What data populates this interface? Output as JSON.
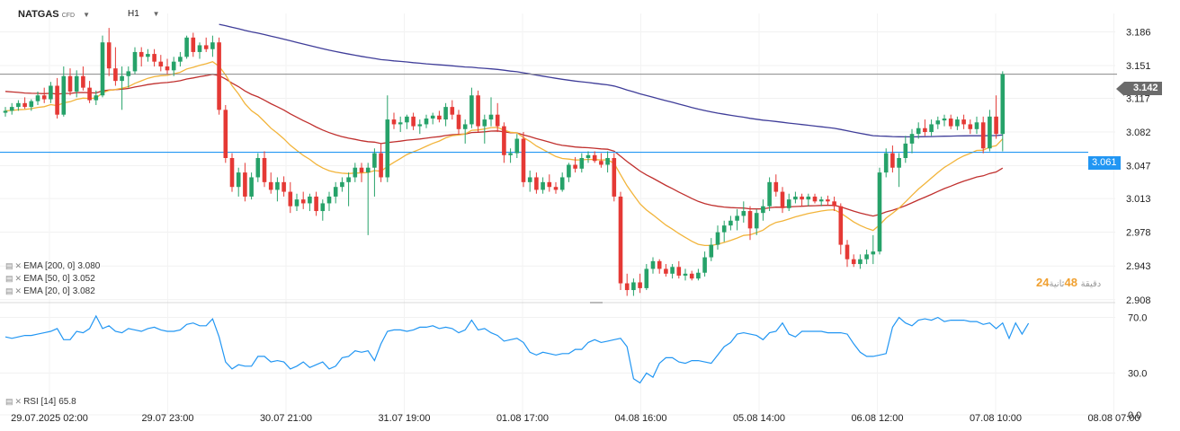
{
  "header": {
    "symbol": "NATGAS",
    "symbol_suffix": "CFD",
    "timeframe": "H1"
  },
  "indicators": [
    {
      "label": "EMA [200, 0]",
      "value": "3.080",
      "color": "#3f3d99"
    },
    {
      "label": "EMA [50, 0]",
      "value": "3.052",
      "color": "#c0302e"
    },
    {
      "label": "EMA [20, 0]",
      "value": "3.082",
      "color": "#f2b43a"
    }
  ],
  "rsi": {
    "label": "RSI [14]",
    "value": "65.8",
    "color": "#2196f3"
  },
  "price_tags": {
    "last": "3.142",
    "level": "3.061"
  },
  "timer": {
    "minutes": "24",
    "seconds": "48",
    "min_suffix": "دقيقة",
    "sec_suffix": "ثانية"
  },
  "colors": {
    "up": "#26a269",
    "down": "#e53935",
    "level_line": "#2196f3"
  },
  "chart_data": [
    {
      "type": "candlestick",
      "x_tick_labels": [
        "29.07.2025 02:00",
        "29.07 23:00",
        "30.07 21:00",
        "31.07 19:00",
        "01.08 17:00",
        "04.08 16:00",
        "05.08 14:00",
        "06.08 12:00",
        "07.08 10:00",
        "08.08 07:00"
      ],
      "y_tick_labels": [
        "3.186",
        "3.151",
        "3.117",
        "3.082",
        "3.047",
        "3.013",
        "2.978",
        "2.943",
        "2.908"
      ],
      "ylim": [
        2.905,
        3.205
      ],
      "horizontal_lines": [
        3.142,
        3.061
      ],
      "candles": [
        [
          3.102,
          3.108,
          3.098,
          3.104
        ],
        [
          3.104,
          3.112,
          3.1,
          3.108
        ],
        [
          3.108,
          3.115,
          3.104,
          3.112
        ],
        [
          3.112,
          3.118,
          3.106,
          3.108
        ],
        [
          3.108,
          3.116,
          3.104,
          3.114
        ],
        [
          3.114,
          3.124,
          3.11,
          3.12
        ],
        [
          3.12,
          3.128,
          3.112,
          3.116
        ],
        [
          3.116,
          3.134,
          3.112,
          3.13
        ],
        [
          3.13,
          3.138,
          3.096,
          3.1
        ],
        [
          3.1,
          3.15,
          3.098,
          3.14
        ],
        [
          3.14,
          3.148,
          3.12,
          3.124
        ],
        [
          3.124,
          3.146,
          3.118,
          3.14
        ],
        [
          3.14,
          3.15,
          3.125,
          3.128
        ],
        [
          3.128,
          3.135,
          3.112,
          3.115
        ],
        [
          3.115,
          3.125,
          3.11,
          3.12
        ],
        [
          3.12,
          3.182,
          3.118,
          3.175
        ],
        [
          3.175,
          3.19,
          3.14,
          3.148
        ],
        [
          3.148,
          3.17,
          3.13,
          3.135
        ],
        [
          3.135,
          3.15,
          3.105,
          3.14
        ],
        [
          3.14,
          3.15,
          3.128,
          3.145
        ],
        [
          3.145,
          3.17,
          3.142,
          3.165
        ],
        [
          3.165,
          3.17,
          3.15,
          3.16
        ],
        [
          3.16,
          3.168,
          3.155,
          3.163
        ],
        [
          3.163,
          3.168,
          3.15,
          3.155
        ],
        [
          3.155,
          3.162,
          3.145,
          3.15
        ],
        [
          3.15,
          3.158,
          3.142,
          3.146
        ],
        [
          3.146,
          3.16,
          3.14,
          3.155
        ],
        [
          3.155,
          3.165,
          3.15,
          3.16
        ],
        [
          3.16,
          3.182,
          3.158,
          3.18
        ],
        [
          3.18,
          3.185,
          3.16,
          3.165
        ],
        [
          3.165,
          3.175,
          3.158,
          3.172
        ],
        [
          3.172,
          3.18,
          3.165,
          3.168
        ],
        [
          3.168,
          3.182,
          3.16,
          3.175
        ],
        [
          3.175,
          3.18,
          3.1,
          3.105
        ],
        [
          3.105,
          3.11,
          3.05,
          3.055
        ],
        [
          3.055,
          3.06,
          3.02,
          3.025
        ],
        [
          3.025,
          3.045,
          3.015,
          3.04
        ],
        [
          3.04,
          3.05,
          3.01,
          3.015
        ],
        [
          3.015,
          3.04,
          3.012,
          3.035
        ],
        [
          3.035,
          3.06,
          3.03,
          3.055
        ],
        [
          3.055,
          3.062,
          3.025,
          3.03
        ],
        [
          3.03,
          3.04,
          3.018,
          3.022
        ],
        [
          3.022,
          3.035,
          3.01,
          3.03
        ],
        [
          3.03,
          3.036,
          3.015,
          3.02
        ],
        [
          3.02,
          3.03,
          2.998,
          3.005
        ],
        [
          3.005,
          3.018,
          3.0,
          3.012
        ],
        [
          3.012,
          3.02,
          3.002,
          3.008
        ],
        [
          3.008,
          3.018,
          3.0,
          3.015
        ],
        [
          3.015,
          3.02,
          2.995,
          3.0
        ],
        [
          3.0,
          3.012,
          2.99,
          3.008
        ],
        [
          3.008,
          3.02,
          3.0,
          3.015
        ],
        [
          3.015,
          3.03,
          3.008,
          3.025
        ],
        [
          3.025,
          3.035,
          3.02,
          3.03
        ],
        [
          3.03,
          3.04,
          3.005,
          3.035
        ],
        [
          3.035,
          3.05,
          3.03,
          3.045
        ],
        [
          3.045,
          3.05,
          3.03,
          3.04
        ],
        [
          3.04,
          3.05,
          2.975,
          3.045
        ],
        [
          3.045,
          3.065,
          3.015,
          3.06
        ],
        [
          3.06,
          3.07,
          3.03,
          3.035
        ],
        [
          3.035,
          3.12,
          3.03,
          3.095
        ],
        [
          3.095,
          3.102,
          3.085,
          3.09
        ],
        [
          3.09,
          3.098,
          3.082,
          3.092
        ],
        [
          3.092,
          3.1,
          3.085,
          3.098
        ],
        [
          3.098,
          3.102,
          3.084,
          3.088
        ],
        [
          3.088,
          3.095,
          3.08,
          3.09
        ],
        [
          3.09,
          3.1,
          3.086,
          3.096
        ],
        [
          3.096,
          3.102,
          3.09,
          3.099
        ],
        [
          3.099,
          3.104,
          3.092,
          3.095
        ],
        [
          3.095,
          3.112,
          3.088,
          3.108
        ],
        [
          3.108,
          3.115,
          3.095,
          3.1
        ],
        [
          3.1,
          3.105,
          3.08,
          3.085
        ],
        [
          3.085,
          3.095,
          3.07,
          3.09
        ],
        [
          3.09,
          3.128,
          3.086,
          3.12
        ],
        [
          3.12,
          3.125,
          3.082,
          3.088
        ],
        [
          3.088,
          3.1,
          3.07,
          3.095
        ],
        [
          3.095,
          3.118,
          3.088,
          3.1
        ],
        [
          3.1,
          3.112,
          3.082,
          3.088
        ],
        [
          3.088,
          3.092,
          3.05,
          3.058
        ],
        [
          3.058,
          3.065,
          3.05,
          3.06
        ],
        [
          3.06,
          3.08,
          3.055,
          3.075
        ],
        [
          3.075,
          3.082,
          3.025,
          3.03
        ],
        [
          3.03,
          3.042,
          3.02,
          3.035
        ],
        [
          3.035,
          3.04,
          3.018,
          3.022
        ],
        [
          3.022,
          3.035,
          3.018,
          3.03
        ],
        [
          3.03,
          3.038,
          3.02,
          3.025
        ],
        [
          3.025,
          3.03,
          3.018,
          3.022
        ],
        [
          3.022,
          3.04,
          3.02,
          3.035
        ],
        [
          3.035,
          3.05,
          3.03,
          3.048
        ],
        [
          3.048,
          3.056,
          3.04,
          3.044
        ],
        [
          3.044,
          3.06,
          3.04,
          3.055
        ],
        [
          3.055,
          3.062,
          3.05,
          3.058
        ],
        [
          3.058,
          3.062,
          3.05,
          3.052
        ],
        [
          3.052,
          3.06,
          3.045,
          3.048
        ],
        [
          3.048,
          3.062,
          3.04,
          3.055
        ],
        [
          3.055,
          3.06,
          3.01,
          3.015
        ],
        [
          3.015,
          3.02,
          2.918,
          2.925
        ],
        [
          2.925,
          2.935,
          2.912,
          2.918
        ],
        [
          2.918,
          2.93,
          2.912,
          2.926
        ],
        [
          2.926,
          2.935,
          2.915,
          2.92
        ],
        [
          2.92,
          2.945,
          2.918,
          2.94
        ],
        [
          2.94,
          2.952,
          2.935,
          2.948
        ],
        [
          2.948,
          2.95,
          2.935,
          2.94
        ],
        [
          2.94,
          2.945,
          2.932,
          2.935
        ],
        [
          2.935,
          2.945,
          2.93,
          2.942
        ],
        [
          2.942,
          2.948,
          2.93,
          2.933
        ],
        [
          2.933,
          2.94,
          2.928,
          2.935
        ],
        [
          2.935,
          2.938,
          2.928,
          2.93
        ],
        [
          2.93,
          2.94,
          2.928,
          2.936
        ],
        [
          2.936,
          2.958,
          2.932,
          2.952
        ],
        [
          2.952,
          2.972,
          2.948,
          2.965
        ],
        [
          2.965,
          2.985,
          2.96,
          2.978
        ],
        [
          2.978,
          2.99,
          2.968,
          2.985
        ],
        [
          2.985,
          2.995,
          2.98,
          2.99
        ],
        [
          2.99,
          3.002,
          2.98,
          2.995
        ],
        [
          2.995,
          3.01,
          2.988,
          3.0
        ],
        [
          3.0,
          3.005,
          2.97,
          2.982
        ],
        [
          2.982,
          3.002,
          2.975,
          2.998
        ],
        [
          2.998,
          3.012,
          2.99,
          3.005
        ],
        [
          3.005,
          3.035,
          3.0,
          3.03
        ],
        [
          3.03,
          3.038,
          3.015,
          3.02
        ],
        [
          3.02,
          3.025,
          2.998,
          3.003
        ],
        [
          3.003,
          3.018,
          3.0,
          3.012
        ],
        [
          3.012,
          3.02,
          3.008,
          3.015
        ],
        [
          3.015,
          3.018,
          3.005,
          3.012
        ],
        [
          3.012,
          3.018,
          3.005,
          3.015
        ],
        [
          3.015,
          3.018,
          3.008,
          3.01
        ],
        [
          3.01,
          3.015,
          3.005,
          3.012
        ],
        [
          3.012,
          3.016,
          3.006,
          3.01
        ],
        [
          3.01,
          3.015,
          3.0,
          3.005
        ],
        [
          3.005,
          3.008,
          2.955,
          2.965
        ],
        [
          2.965,
          2.97,
          2.942,
          2.95
        ],
        [
          2.95,
          2.955,
          2.942,
          2.945
        ],
        [
          2.945,
          2.955,
          2.94,
          2.95
        ],
        [
          2.95,
          2.96,
          2.945,
          2.955
        ],
        [
          2.955,
          2.975,
          2.945,
          2.958
        ],
        [
          2.958,
          3.045,
          2.955,
          3.04
        ],
        [
          3.04,
          3.065,
          3.035,
          3.06
        ],
        [
          3.06,
          3.068,
          3.04,
          3.045
        ],
        [
          3.045,
          3.06,
          3.025,
          3.055
        ],
        [
          3.055,
          3.078,
          3.05,
          3.07
        ],
        [
          3.07,
          3.085,
          3.06,
          3.08
        ],
        [
          3.08,
          3.092,
          3.075,
          3.086
        ],
        [
          3.086,
          3.095,
          3.078,
          3.082
        ],
        [
          3.082,
          3.095,
          3.078,
          3.09
        ],
        [
          3.09,
          3.098,
          3.085,
          3.094
        ],
        [
          3.094,
          3.1,
          3.088,
          3.096
        ],
        [
          3.096,
          3.1,
          3.085,
          3.088
        ],
        [
          3.088,
          3.098,
          3.084,
          3.095
        ],
        [
          3.095,
          3.1,
          3.085,
          3.09
        ],
        [
          3.09,
          3.095,
          3.08,
          3.085
        ],
        [
          3.085,
          3.098,
          3.08,
          3.092
        ],
        [
          3.092,
          3.098,
          3.06,
          3.065
        ],
        [
          3.065,
          3.105,
          3.062,
          3.098
        ],
        [
          3.098,
          3.12,
          3.075,
          3.08
        ],
        [
          3.08,
          3.145,
          3.062,
          3.142
        ]
      ]
    },
    {
      "type": "line",
      "title": "RSI [14]",
      "y_tick_labels": [
        "70.0",
        "30.0",
        "0.0"
      ],
      "ylim": [
        0,
        80
      ],
      "values": [
        56,
        55,
        56,
        57,
        57,
        58,
        59,
        60,
        62,
        54,
        54,
        60,
        59,
        62,
        71,
        62,
        64,
        60,
        59,
        62,
        61,
        60,
        62,
        63,
        61,
        60,
        60,
        61,
        65,
        66,
        64,
        64,
        69,
        56,
        38,
        33,
        36,
        35,
        35,
        42,
        42,
        38,
        39,
        38,
        33,
        35,
        38,
        34,
        36,
        38,
        33,
        35,
        41,
        42,
        46,
        45,
        46,
        39,
        51,
        60,
        61,
        61,
        60,
        61,
        63,
        63,
        64,
        62,
        63,
        62,
        59,
        61,
        68,
        61,
        62,
        59,
        57,
        53,
        54,
        55,
        52,
        45,
        43,
        45,
        44,
        43,
        44,
        44,
        47,
        47,
        52,
        54,
        52,
        53,
        54,
        55,
        49,
        26,
        23,
        30,
        27,
        37,
        41,
        41,
        38,
        37,
        39,
        39,
        38,
        37,
        43,
        49,
        52,
        58,
        59,
        58,
        57,
        54,
        59,
        60,
        66,
        58,
        56,
        60,
        60,
        60,
        60,
        59,
        59,
        59,
        58,
        51,
        45,
        42,
        42,
        43,
        44,
        63,
        70,
        66,
        64,
        68,
        69,
        68,
        70,
        67,
        68,
        68,
        68,
        67,
        67,
        65,
        66,
        62,
        66,
        55,
        66,
        58,
        65.8
      ]
    }
  ]
}
